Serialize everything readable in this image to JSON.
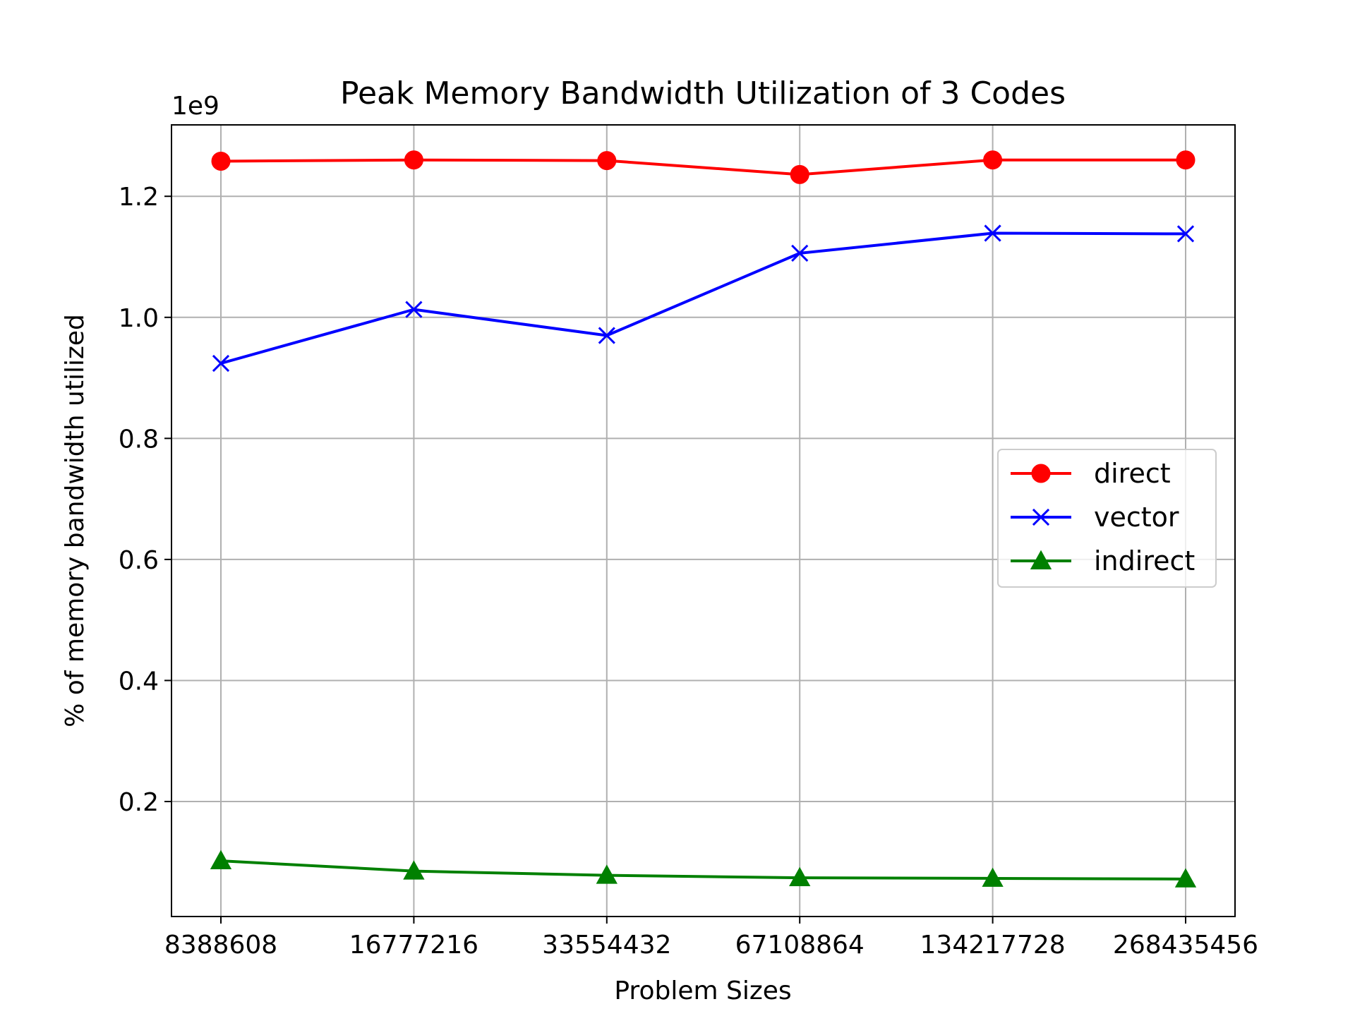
{
  "chart_data": {
    "type": "line",
    "title": "Peak Memory Bandwidth Utilization of 3 Codes",
    "xlabel": "Problem Sizes",
    "ylabel": "% of memory bandwidth utilized",
    "y_offset_label": "1e9",
    "y_scale": 1000000000,
    "categories": [
      "8388608",
      "16777216",
      "33554432",
      "67108864",
      "134217728",
      "268435456"
    ],
    "ylim": [
      0.01,
      1.318
    ],
    "yticks": [
      0.2,
      0.4,
      0.6,
      0.8,
      1.0,
      1.2
    ],
    "ytick_labels": [
      "0.2",
      "0.4",
      "0.6",
      "0.8",
      "1.0",
      "1.2"
    ],
    "grid": true,
    "legend_position": "center-right",
    "series": [
      {
        "name": "direct",
        "color": "#ff0000",
        "marker": "circle",
        "values": [
          1.258,
          1.26,
          1.259,
          1.236,
          1.26,
          1.26
        ]
      },
      {
        "name": "vector",
        "color": "#0000ff",
        "marker": "x",
        "values": [
          0.924,
          1.013,
          0.97,
          1.106,
          1.139,
          1.138
        ]
      },
      {
        "name": "indirect",
        "color": "#008000",
        "marker": "triangle",
        "values": [
          0.102,
          0.085,
          0.078,
          0.074,
          0.073,
          0.072
        ]
      }
    ]
  }
}
